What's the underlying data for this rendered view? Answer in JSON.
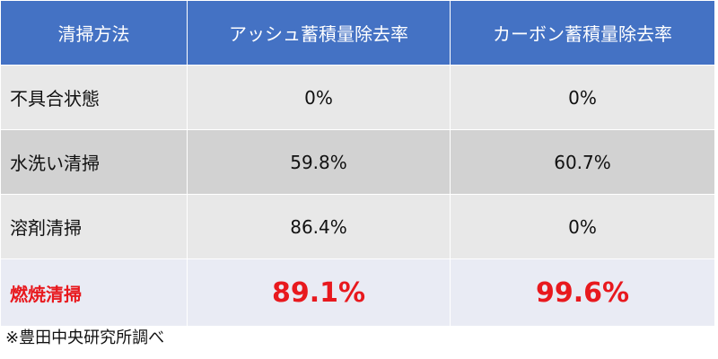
{
  "table": {
    "header": [
      "清掃方法",
      "アッシュ蓄積量除去率",
      "カーボン蓄積量除去率"
    ],
    "rows": [
      [
        "不具合状態",
        "0%",
        "0%"
      ],
      [
        "水洗い清掃",
        "59.8%",
        "60.7%"
      ],
      [
        "溶剤清掃",
        "86.4%",
        "0%"
      ],
      [
        "燃焼清掃",
        "89.1%",
        "99.6%"
      ]
    ]
  },
  "footnote": "※豊田中央研究所調べ"
}
